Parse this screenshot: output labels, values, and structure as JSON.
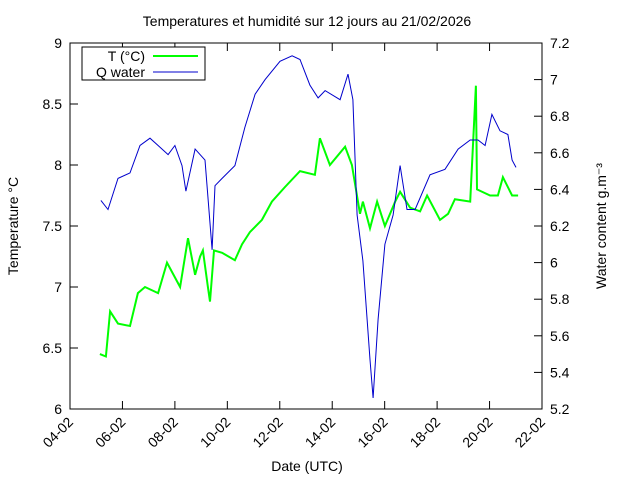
{
  "chart_data": {
    "type": "line",
    "title": "Temperatures et humidité sur 12 jours au 21/02/2026",
    "x_label": "Date (UTC)",
    "y_label": "Temperature °C",
    "y2_label": "Water content g.m⁻³",
    "xlim": [
      4,
      22
    ],
    "xticks": [
      {
        "value": 4,
        "label": "04-02"
      },
      {
        "value": 6,
        "label": "06-02"
      },
      {
        "value": 8,
        "label": "08-02"
      },
      {
        "value": 10,
        "label": "10-02"
      },
      {
        "value": 12,
        "label": "12-02"
      },
      {
        "value": 14,
        "label": "14-02"
      },
      {
        "value": 16,
        "label": "16-02"
      },
      {
        "value": 18,
        "label": "18-02"
      },
      {
        "value": 20,
        "label": "20-02"
      },
      {
        "value": 22,
        "label": "22-02"
      }
    ],
    "ylim": [
      6,
      9
    ],
    "yticks": [
      6,
      6.5,
      7,
      7.5,
      8,
      8.5,
      9
    ],
    "y2lim": [
      5.2,
      7.2
    ],
    "y2ticks": [
      5.2,
      5.4,
      5.6,
      5.8,
      6,
      6.2,
      6.4,
      6.6,
      6.8,
      7,
      7.2
    ],
    "legend": "upper-left",
    "series": [
      {
        "name": "T (°C)",
        "color": "#00ff00",
        "x": [
          5.14,
          5.37,
          5.53,
          5.83,
          6.29,
          6.59,
          6.86,
          7.36,
          7.7,
          8.2,
          8.5,
          8.77,
          8.96,
          9.07,
          9.26,
          9.34,
          9.49,
          9.8,
          10.29,
          10.56,
          10.86,
          11.32,
          11.7,
          12.2,
          12.77,
          13.34,
          13.53,
          13.91,
          14.49,
          14.75,
          15.06,
          15.17,
          15.44,
          15.71,
          16.01,
          16.4,
          16.59,
          16.97,
          17.35,
          17.62,
          18.11,
          18.42,
          18.68,
          19.26,
          19.48,
          19.52,
          20.02,
          20.32,
          20.51,
          20.86,
          21.09
        ],
        "values": [
          6.45,
          6.43,
          6.8,
          6.7,
          6.68,
          6.95,
          7.0,
          6.95,
          7.2,
          7.0,
          7.4,
          7.1,
          7.25,
          7.3,
          7.0,
          6.88,
          7.3,
          7.28,
          7.22,
          7.35,
          7.45,
          7.55,
          7.7,
          7.82,
          7.95,
          7.92,
          8.22,
          8.0,
          8.15,
          8.0,
          7.6,
          7.7,
          7.48,
          7.7,
          7.5,
          7.7,
          7.78,
          7.65,
          7.62,
          7.75,
          7.55,
          7.6,
          7.72,
          7.7,
          8.65,
          7.8,
          7.75,
          7.75,
          7.9,
          7.75,
          7.75
        ]
      },
      {
        "name": "Q water",
        "color": "#0000cc",
        "axis": "y2",
        "x": [
          5.18,
          5.45,
          5.83,
          6.29,
          6.67,
          7.05,
          7.36,
          7.74,
          8.0,
          8.27,
          8.42,
          8.77,
          9.15,
          9.42,
          9.53,
          9.8,
          10.29,
          10.67,
          11.06,
          11.44,
          12.01,
          12.47,
          12.77,
          13.15,
          13.46,
          13.73,
          14.3,
          14.6,
          14.79,
          14.95,
          15.17,
          15.44,
          15.56,
          15.75,
          16.01,
          16.32,
          16.59,
          16.85,
          17.16,
          17.73,
          18.3,
          18.8,
          19.26,
          19.56,
          19.83,
          20.09,
          20.4,
          20.7,
          20.86,
          21.01
        ],
        "values": [
          6.34,
          6.29,
          6.46,
          6.49,
          6.64,
          6.68,
          6.64,
          6.59,
          6.64,
          6.53,
          6.39,
          6.62,
          6.56,
          6.07,
          6.42,
          6.46,
          6.53,
          6.74,
          6.92,
          7.0,
          7.1,
          7.13,
          7.11,
          6.97,
          6.9,
          6.94,
          6.89,
          7.03,
          6.89,
          6.26,
          6.01,
          5.47,
          5.26,
          5.69,
          6.1,
          6.26,
          6.53,
          6.29,
          6.29,
          6.48,
          6.51,
          6.62,
          6.67,
          6.67,
          6.64,
          6.81,
          6.72,
          6.7,
          6.56,
          6.52
        ]
      }
    ]
  }
}
